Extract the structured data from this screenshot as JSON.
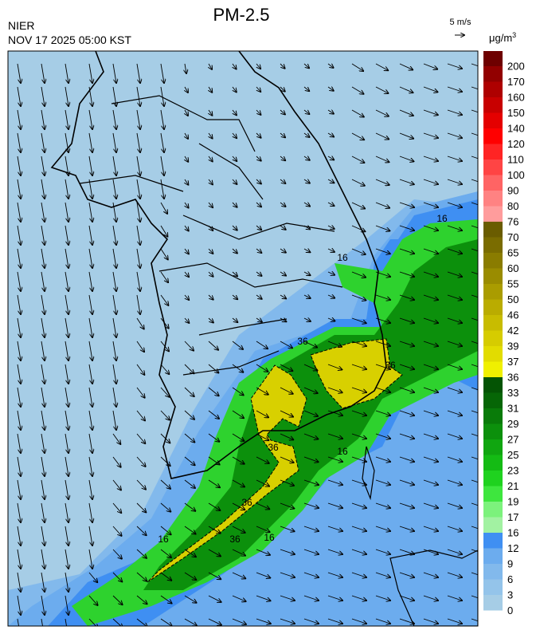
{
  "header": {
    "title": "PM-2.5",
    "agency": "NIER",
    "datetime": "NOV 17 2025 05:00 KST",
    "wind_scale": "5 m/s",
    "unit": "μg/m",
    "unit_power": "3"
  },
  "colorbar": {
    "levels": [
      0,
      3,
      6,
      9,
      12,
      16,
      17,
      19,
      21,
      23,
      25,
      27,
      29,
      31,
      33,
      36,
      37,
      39,
      42,
      46,
      50,
      55,
      60,
      65,
      70,
      76,
      80,
      90,
      100,
      110,
      120,
      140,
      150,
      160,
      170,
      200
    ],
    "colors": [
      "#a6cde6",
      "#94c4ea",
      "#82b9ec",
      "#6cacee",
      "#3f8ff2",
      "#a2f2a2",
      "#7cf27c",
      "#3ee63e",
      "#1fd21f",
      "#14bb14",
      "#10a610",
      "#0c900c",
      "#097b09",
      "#066606",
      "#045404",
      "#f0f000",
      "#e2dc00",
      "#d6cc00",
      "#c8bc00",
      "#baac00",
      "#aa9c00",
      "#9a8c00",
      "#8a7c00",
      "#7a6c00",
      "#6a5c00",
      "#ff9c9c",
      "#ff8282",
      "#ff6464",
      "#ff4444",
      "#ff2424",
      "#ff0000",
      "#e40000",
      "#c80000",
      "#ae0000",
      "#920000",
      "#6e0000"
    ]
  },
  "map": {
    "contour_labels": [
      16,
      16,
      16,
      16,
      16,
      36,
      36,
      36,
      36,
      36
    ]
  }
}
